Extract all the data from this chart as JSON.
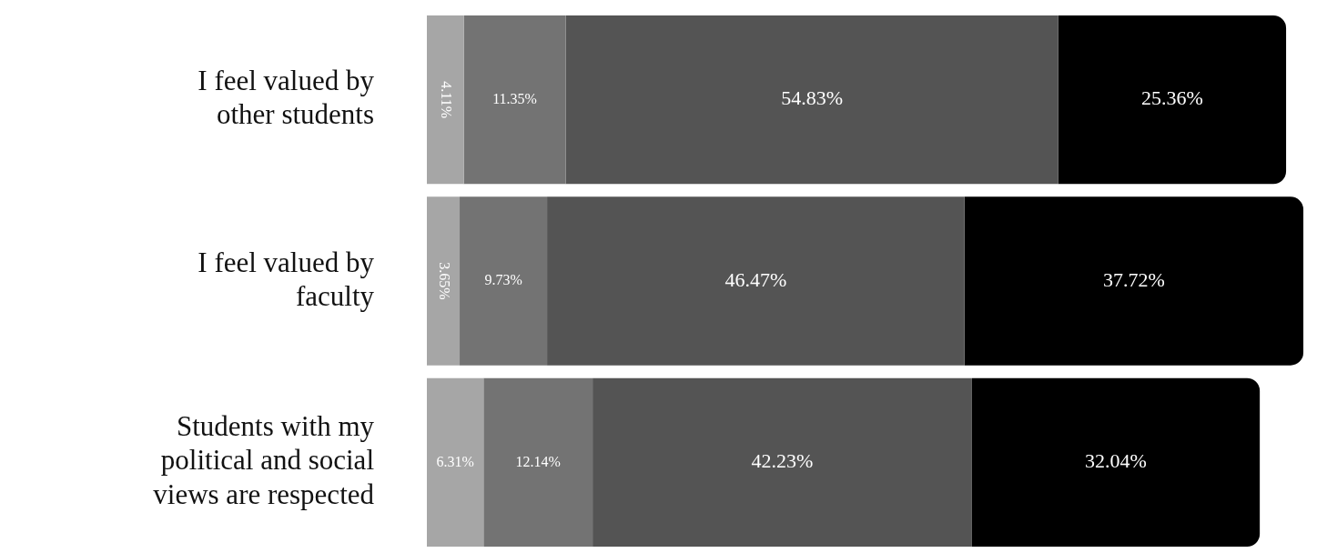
{
  "chart_data": {
    "type": "bar",
    "orientation": "horizontal",
    "stacked": true,
    "categories": [
      "I feel valued by other students",
      "I feel valued by faculty",
      "Students with my political and social views are respected"
    ],
    "series": [
      {
        "color": "#a6a6a6",
        "values": [
          4.11,
          3.65,
          6.31
        ],
        "value_labels": [
          "4.11%",
          "3.65%",
          "6.31%"
        ]
      },
      {
        "color": "#737373",
        "values": [
          11.35,
          9.73,
          12.14
        ],
        "value_labels": [
          "11.35%",
          "9.73%",
          "12.14%"
        ]
      },
      {
        "color": "#545454",
        "values": [
          54.83,
          46.47,
          42.23
        ],
        "value_labels": [
          "54.83%",
          "46.47%",
          "42.23%"
        ]
      },
      {
        "color": "#000000",
        "values": [
          25.36,
          37.72,
          32.04
        ],
        "value_labels": [
          "25.36%",
          "37.72%",
          "32.04%"
        ]
      }
    ],
    "tick_labels": "y",
    "legend": false
  }
}
